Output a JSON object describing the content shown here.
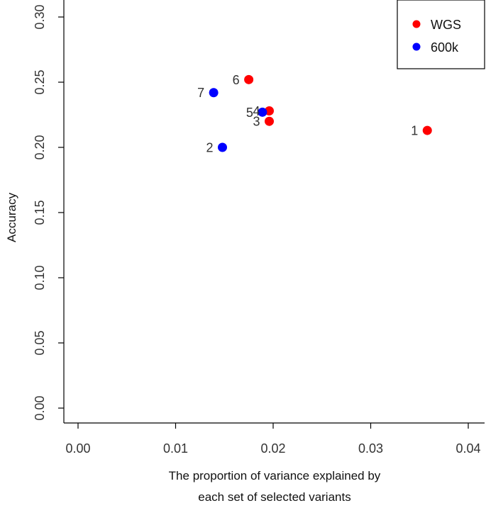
{
  "chart_data": {
    "type": "scatter",
    "title": "",
    "xlabel_line1": "The proportion of variance explained by",
    "xlabel_line2": "each set of selected variants",
    "ylabel": "Accuracy",
    "xlim": [
      0.0,
      0.04
    ],
    "ylim": [
      0.0,
      0.3
    ],
    "x_ticks": [
      0.0,
      0.01,
      0.02,
      0.03,
      0.04
    ],
    "x_tick_labels": [
      "0.00",
      "0.01",
      "0.02",
      "0.03",
      "0.04"
    ],
    "y_ticks": [
      0.0,
      0.05,
      0.1,
      0.15,
      0.2,
      0.25,
      0.3
    ],
    "y_tick_labels": [
      "0.00",
      "0.05",
      "0.10",
      "0.15",
      "0.20",
      "0.25",
      "0.30"
    ],
    "legend_position": "top-right",
    "series": [
      {
        "name": "WGS",
        "color": "#ff0000",
        "points": [
          {
            "label": "1",
            "x": 0.0358,
            "y": 0.213
          },
          {
            "label": "3",
            "x": 0.0196,
            "y": 0.22
          },
          {
            "label": "4",
            "x": 0.0196,
            "y": 0.228
          },
          {
            "label": "6",
            "x": 0.0175,
            "y": 0.252
          }
        ]
      },
      {
        "name": "600k",
        "color": "#0000ff",
        "points": [
          {
            "label": "2",
            "x": 0.0148,
            "y": 0.2
          },
          {
            "label": "5",
            "x": 0.0189,
            "y": 0.227
          },
          {
            "label": "7",
            "x": 0.0139,
            "y": 0.242
          }
        ]
      }
    ]
  }
}
